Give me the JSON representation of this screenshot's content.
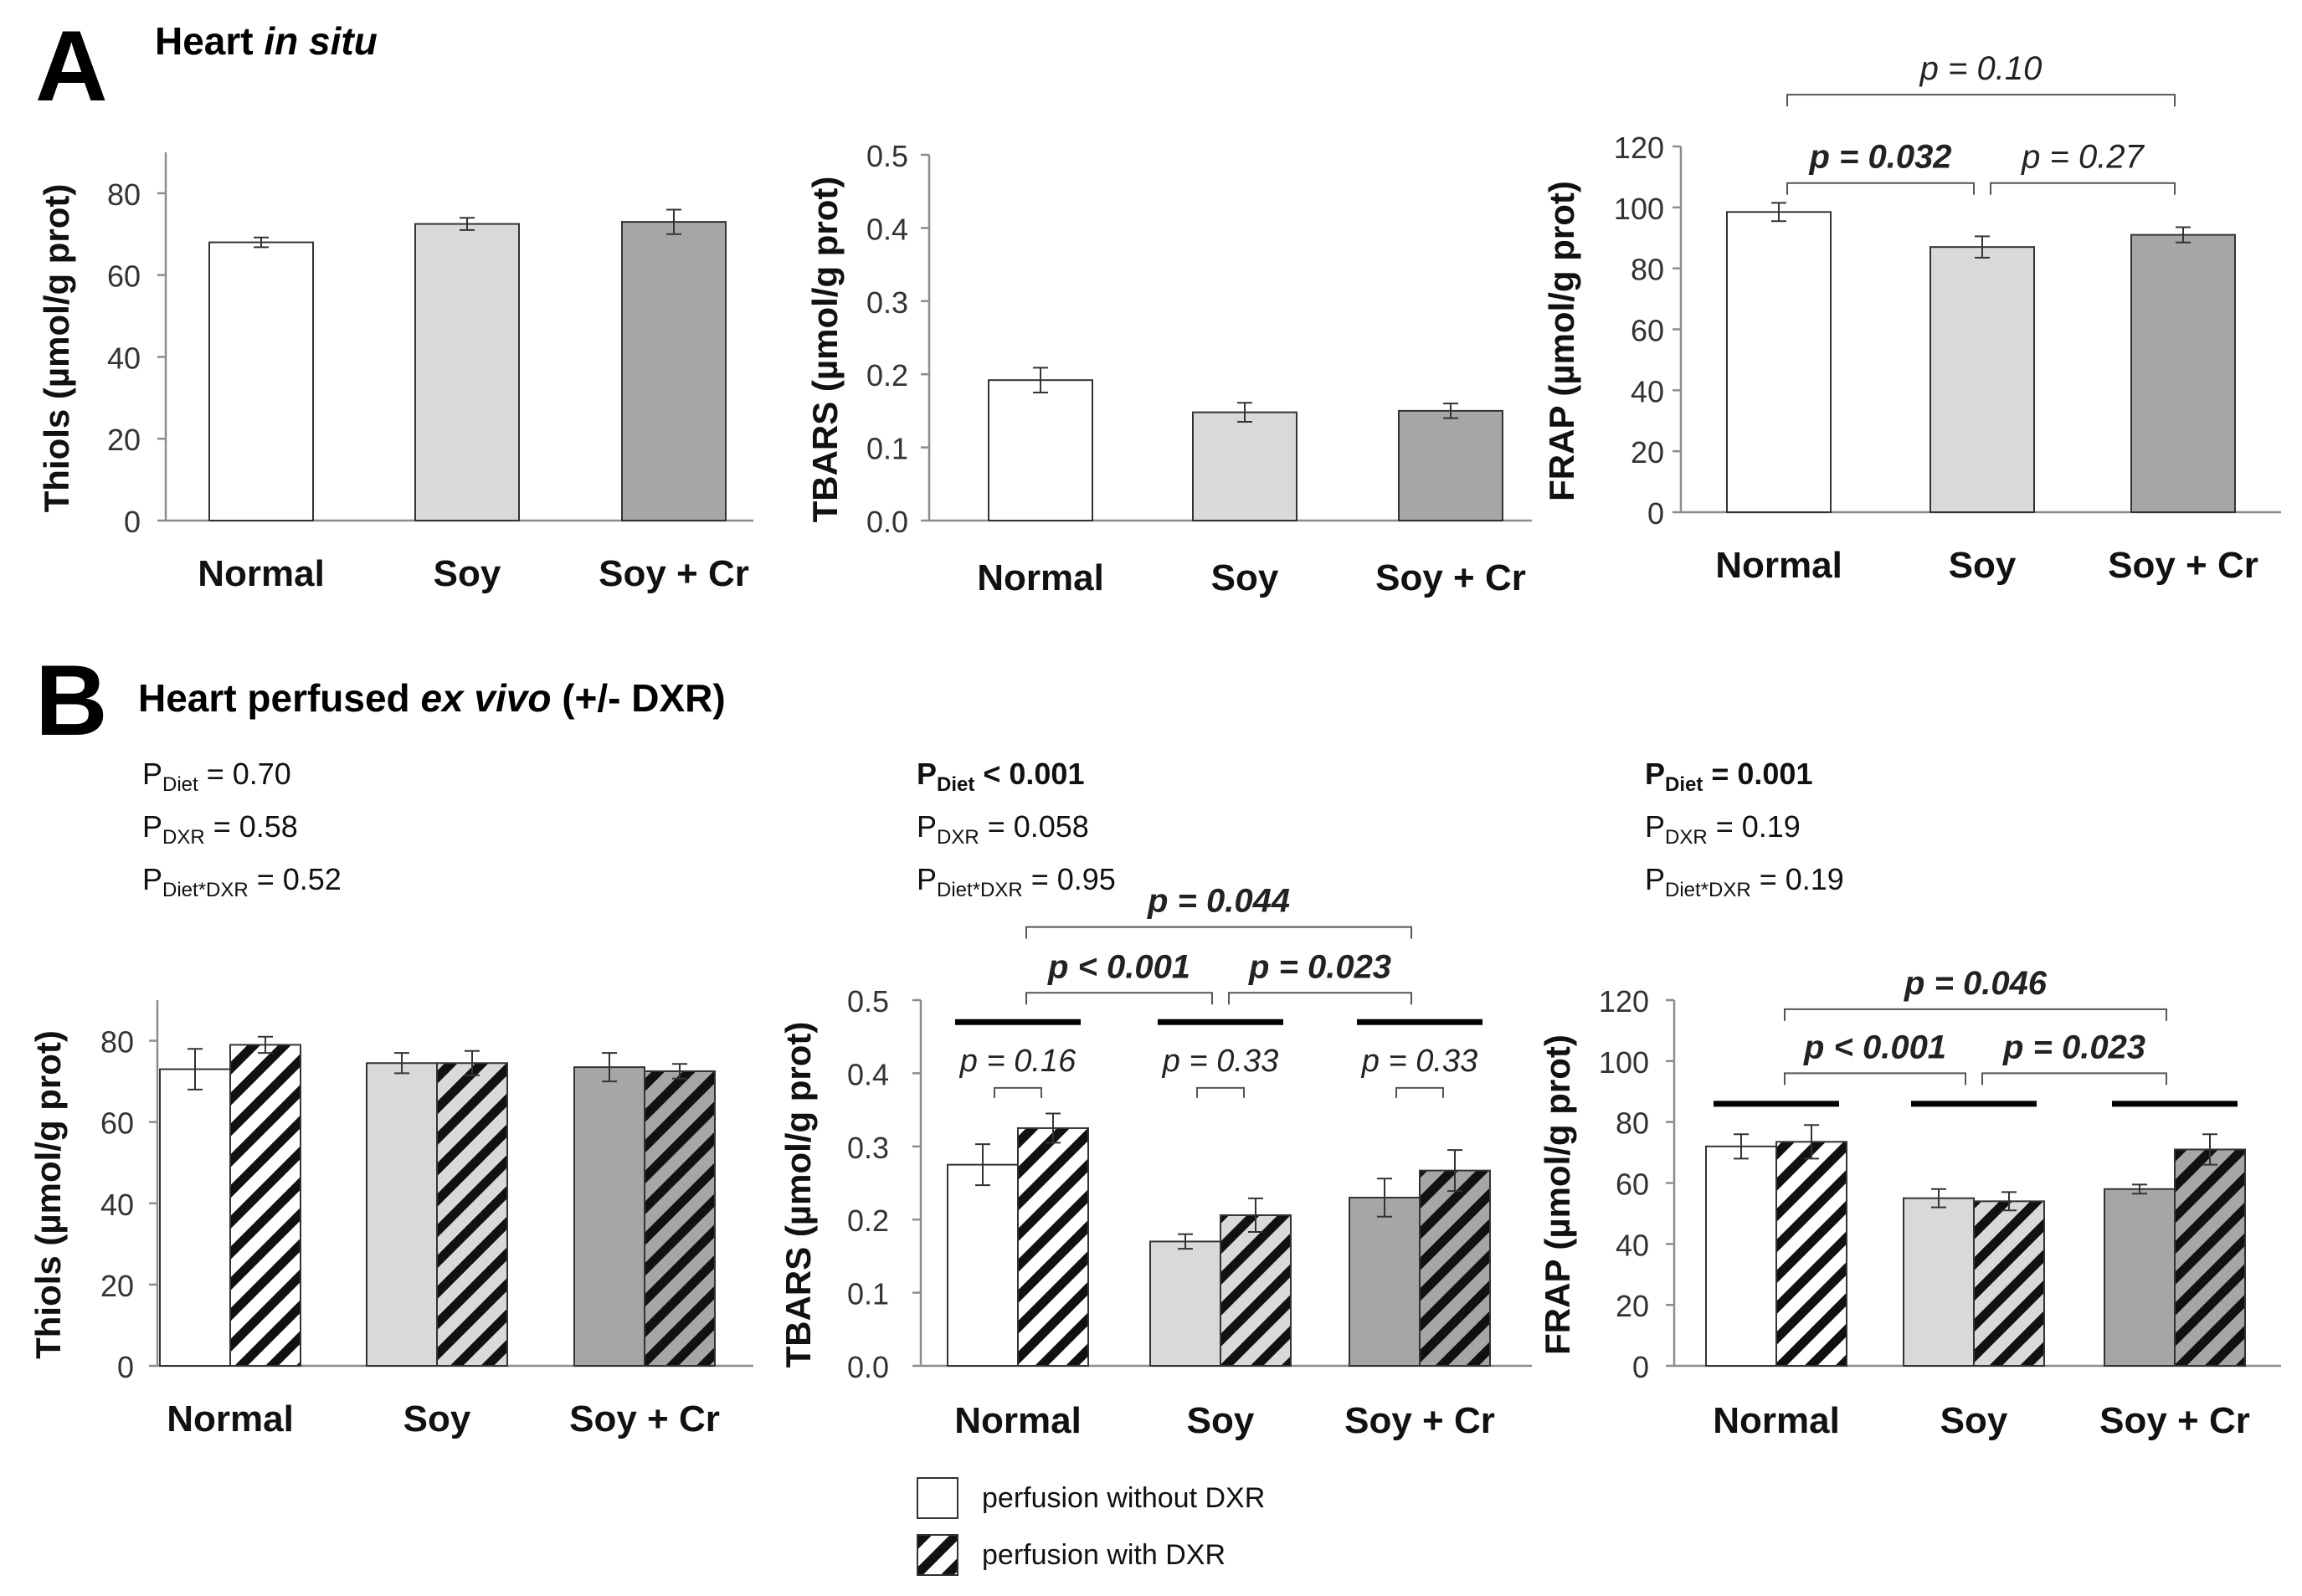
{
  "panelA": {
    "letter": "A",
    "title_plain": "Heart ",
    "title_italic": "in situ"
  },
  "panelB": {
    "letter": "B",
    "title_plain": "Heart perfused ",
    "title_italic": "ex vivo",
    "title_suffix": " (+/- DXR)"
  },
  "anova": [
    {
      "diet_label": "P",
      "diet_sub": "Diet",
      "diet_val": " = 0.70",
      "diet_bold": false,
      "dxr_label": "P",
      "dxr_sub": "DXR",
      "dxr_val": " = 0.58",
      "int_label": "P",
      "int_sub": "Diet*DXR",
      "int_val": " = 0.52"
    },
    {
      "diet_label": "P",
      "diet_sub": "Diet",
      "diet_val": " < 0.001",
      "diet_bold": true,
      "dxr_label": "P",
      "dxr_sub": "DXR",
      "dxr_val": " = 0.058",
      "int_label": "P",
      "int_sub": "Diet*DXR",
      "int_val": " = 0.95"
    },
    {
      "diet_label": "P",
      "diet_sub": "Diet",
      "diet_val": " = 0.001",
      "diet_bold": true,
      "dxr_label": "P",
      "dxr_sub": "DXR",
      "dxr_val": " = 0.19",
      "int_label": "P",
      "int_sub": "Diet*DXR",
      "int_val": " = 0.19"
    }
  ],
  "legend": {
    "without": "perfusion without DXR",
    "with": "perfusion with DXR"
  },
  "colors": {
    "normal": "#ffffff",
    "soy": "#d9d9d9",
    "soycr": "#a6a6a6",
    "stroke": "#333333"
  },
  "chart_data": [
    {
      "id": "A1",
      "type": "bar",
      "panel": "A",
      "categories": [
        "Normal",
        "Soy",
        "Soy + Cr"
      ],
      "series": [
        {
          "name": "in situ",
          "values": [
            68,
            72.5,
            73
          ],
          "errors": [
            1.2,
            1.5,
            3
          ]
        }
      ],
      "ylabel": "Thiols (µmol/g prot)",
      "ylim": [
        0,
        90
      ],
      "yticks": [
        0,
        20,
        40,
        60,
        80
      ],
      "yticklabels": [
        "0",
        "20",
        "40",
        "60",
        "80"
      ],
      "brackets": []
    },
    {
      "id": "A2",
      "type": "bar",
      "panel": "A",
      "categories": [
        "Normal",
        "Soy",
        "Soy + Cr"
      ],
      "series": [
        {
          "name": "in situ",
          "values": [
            0.192,
            0.148,
            0.15
          ],
          "errors": [
            0.017,
            0.013,
            0.01
          ]
        }
      ],
      "ylabel": "TBARS (µmol/g prot)",
      "ylim": [
        0,
        0.5
      ],
      "yticks": [
        0,
        0.1,
        0.2,
        0.3,
        0.4,
        0.5
      ],
      "yticklabels": [
        "0.0",
        "0.1",
        "0.2",
        "0.3",
        "0.4",
        "0.5"
      ],
      "brackets": []
    },
    {
      "id": "A3",
      "type": "bar",
      "panel": "A",
      "categories": [
        "Normal",
        "Soy",
        "Soy + Cr"
      ],
      "series": [
        {
          "name": "in situ",
          "values": [
            98.5,
            87,
            91
          ],
          "errors": [
            3,
            3.5,
            2.5
          ]
        }
      ],
      "ylabel": "FRAP (µmol/g prot)",
      "ylim": [
        0,
        120
      ],
      "yticks": [
        0,
        20,
        40,
        60,
        80,
        100,
        120
      ],
      "yticklabels": [
        "0",
        "20",
        "40",
        "60",
        "80",
        "100",
        "120"
      ],
      "brackets": [
        {
          "from": 0,
          "to": 2,
          "level": 137,
          "label": "p = 0.10",
          "bold": false
        },
        {
          "from": 0,
          "to": 1,
          "level": 108,
          "label": "p = 0.032",
          "bold": true
        },
        {
          "from": 1,
          "to": 2,
          "level": 108,
          "label": "p = 0.27",
          "bold": false
        }
      ]
    },
    {
      "id": "B1",
      "type": "bar",
      "panel": "B",
      "categories": [
        "Normal",
        "Soy",
        "Soy + Cr"
      ],
      "series": [
        {
          "name": "perfusion without DXR",
          "values": [
            73,
            74.5,
            73.5
          ],
          "errors": [
            5,
            2.5,
            3.5
          ]
        },
        {
          "name": "perfusion with DXR",
          "values": [
            79,
            74.5,
            72.5
          ],
          "errors": [
            2,
            3,
            1.8
          ]
        }
      ],
      "ylabel": "Thiols (µmol/g prot)",
      "ylim": [
        0,
        90
      ],
      "yticks": [
        0,
        20,
        40,
        60,
        80
      ],
      "yticklabels": [
        "0",
        "20",
        "40",
        "60",
        "80"
      ],
      "brackets": [],
      "pair_brackets": [],
      "group_lines": false
    },
    {
      "id": "B2",
      "type": "bar",
      "panel": "B",
      "categories": [
        "Normal",
        "Soy",
        "Soy + Cr"
      ],
      "series": [
        {
          "name": "perfusion without DXR",
          "values": [
            0.275,
            0.17,
            0.23
          ],
          "errors": [
            0.028,
            0.01,
            0.026
          ]
        },
        {
          "name": "perfusion with DXR",
          "values": [
            0.325,
            0.206,
            0.267
          ],
          "errors": [
            0.02,
            0.023,
            0.028
          ]
        }
      ],
      "ylabel": "TBARS (µmol/g prot)",
      "ylim": [
        0,
        0.5
      ],
      "yticks": [
        0,
        0.1,
        0.2,
        0.3,
        0.4,
        0.5
      ],
      "yticklabels": [
        "0.0",
        "0.1",
        "0.2",
        "0.3",
        "0.4",
        "0.5"
      ],
      "brackets": [
        {
          "from": 0,
          "to": 2,
          "level": 0.6,
          "label": "p = 0.044",
          "bold": true
        },
        {
          "from": 0,
          "to": 1,
          "level": 0.51,
          "label": "p < 0.001",
          "bold": true
        },
        {
          "from": 1,
          "to": 2,
          "level": 0.51,
          "label": "p = 0.023",
          "bold": true
        }
      ],
      "pair_brackets": [
        {
          "group": 0,
          "level": 0.38,
          "label": "p = 0.16"
        },
        {
          "group": 1,
          "level": 0.38,
          "label": "p = 0.33"
        },
        {
          "group": 2,
          "level": 0.38,
          "label": "p = 0.33"
        }
      ],
      "group_lines": true,
      "group_line_level": 0.47
    },
    {
      "id": "B3",
      "type": "bar",
      "panel": "B",
      "categories": [
        "Normal",
        "Soy",
        "Soy + Cr"
      ],
      "series": [
        {
          "name": "perfusion without DXR",
          "values": [
            72,
            55,
            58
          ],
          "errors": [
            4,
            3,
            1.5
          ]
        },
        {
          "name": "perfusion with DXR",
          "values": [
            73.5,
            54,
            71
          ],
          "errors": [
            5.5,
            3,
            5
          ]
        }
      ],
      "ylabel": "FRAP (µmol/g prot)",
      "ylim": [
        0,
        120
      ],
      "yticks": [
        0,
        20,
        40,
        60,
        80,
        100,
        120
      ],
      "yticklabels": [
        "0",
        "20",
        "40",
        "60",
        "80",
        "100",
        "120"
      ],
      "brackets": [
        {
          "from": 0,
          "to": 2,
          "level": 117,
          "label": "p = 0.046",
          "bold": true
        },
        {
          "from": 0,
          "to": 1,
          "level": 96,
          "label": "p < 0.001",
          "bold": true
        },
        {
          "from": 1,
          "to": 2,
          "level": 96,
          "label": "p = 0.023",
          "bold": true
        }
      ],
      "pair_brackets": [],
      "group_lines": true,
      "group_line_level": 86
    }
  ]
}
